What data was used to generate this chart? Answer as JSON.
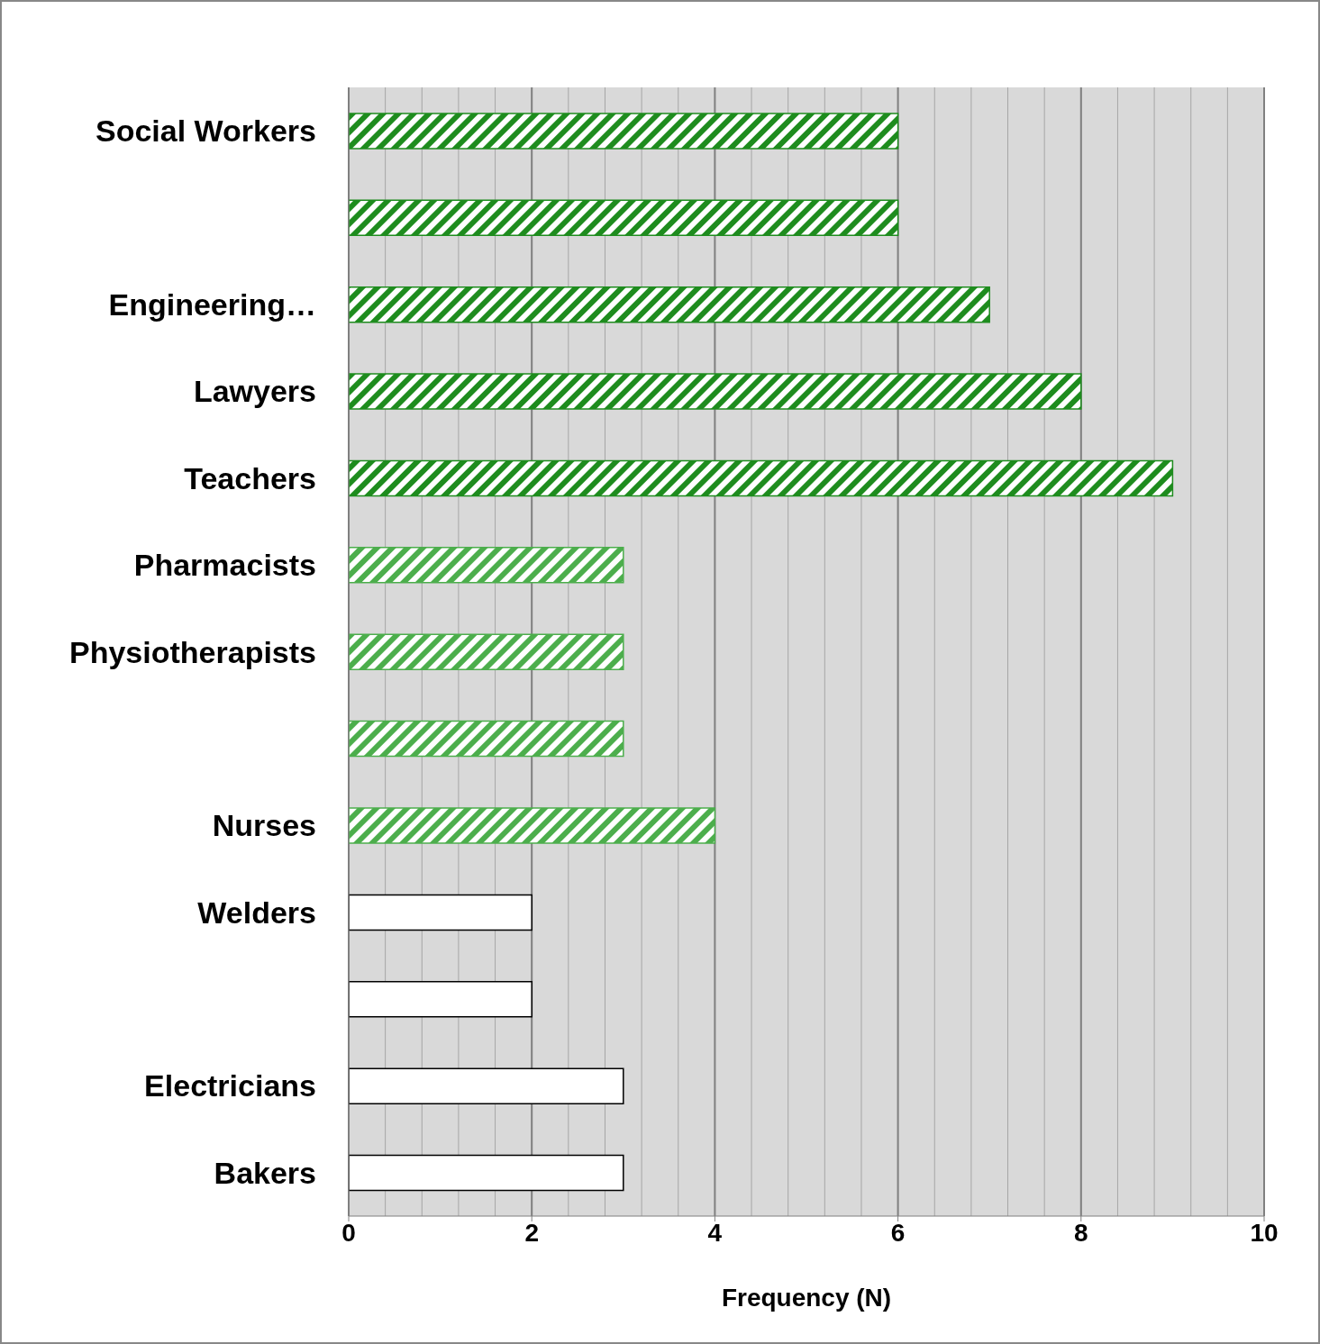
{
  "chart_data": {
    "type": "bar",
    "orientation": "horizontal",
    "xlabel": "Frequency (N)",
    "categories": [
      "Social Workers",
      null,
      "Engineering…",
      "Lawyers",
      "Teachers",
      "Pharmacists",
      "Physiotherapists",
      null,
      "Nurses",
      "Welders",
      null,
      "Electricians",
      "Bakers"
    ],
    "values": [
      6,
      6,
      7,
      8,
      9,
      3,
      3,
      3,
      4,
      2,
      2,
      3,
      3
    ],
    "colors": [
      "#1e8c1e",
      "#1e8c1e",
      "#1e8c1e",
      "#1e8c1e",
      "#1e8c1e",
      "#4cae4c",
      "#4cae4c",
      "#4cae4c",
      "#4cae4c",
      "#ffffff",
      "#ffffff",
      "#ffffff",
      "#ffffff"
    ],
    "xlim": [
      0,
      10
    ],
    "xticks": [
      0,
      2,
      4,
      6,
      8,
      10
    ],
    "grid": "x"
  }
}
